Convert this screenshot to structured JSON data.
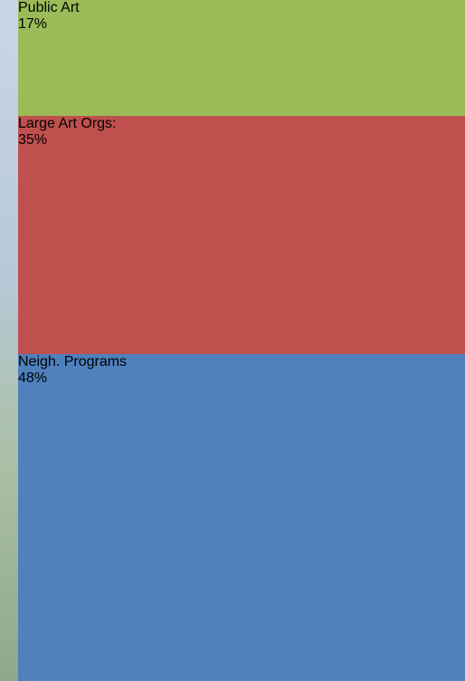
{
  "chart_data": {
    "type": "stacked-bar",
    "ylim": [
      0,
      100
    ],
    "series": [
      {
        "name": "Public Art",
        "color": "#9bbb59",
        "values": [
          17
        ],
        "value_labels": [
          "17%"
        ]
      },
      {
        "name": "Large Art Orgs:",
        "color": "#c0504d",
        "values": [
          35
        ],
        "value_labels": [
          "35%"
        ]
      },
      {
        "name": "Neigh. Programs",
        "color": "#4f81bd",
        "values": [
          48
        ],
        "value_labels": [
          "48%"
        ]
      }
    ]
  }
}
